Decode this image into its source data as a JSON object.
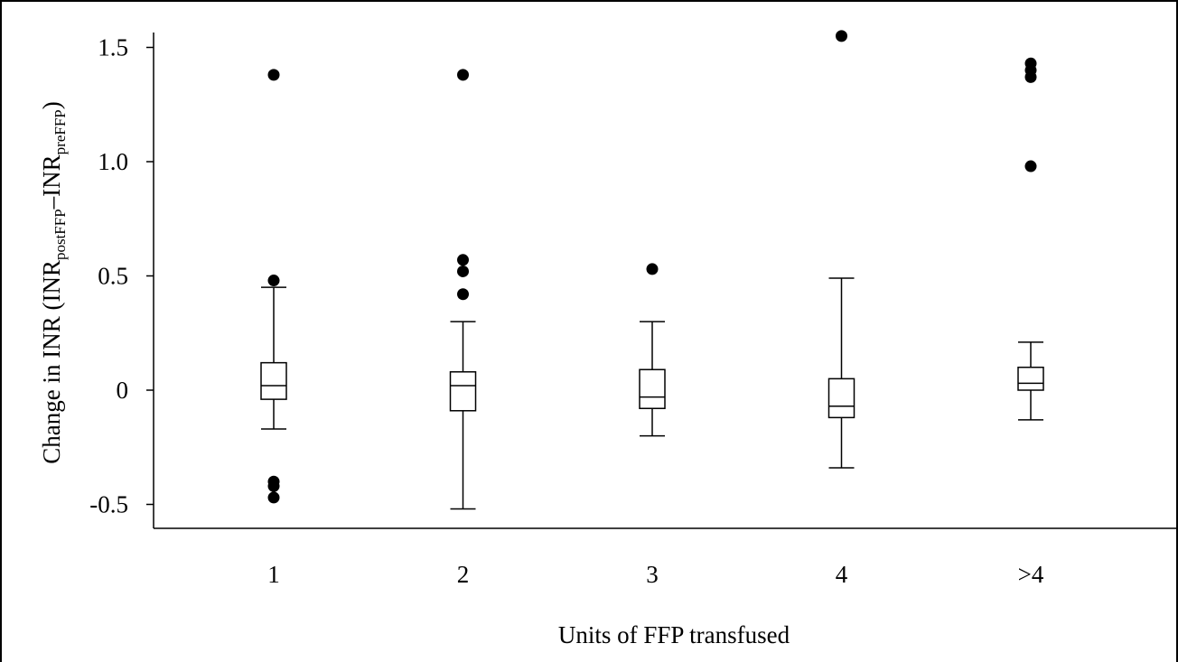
{
  "chart_data": {
    "type": "box",
    "title": "",
    "xlabel": "Units of FFP transfused",
    "ylabel": {
      "main": "Change in INR (INR",
      "sub1": "postFFP",
      "mid": "–INR",
      "sub2": "preFFP",
      "end": ")"
    },
    "categories": [
      "1",
      "2",
      "3",
      "4",
      ">4"
    ],
    "y_ticks": [
      {
        "value": 1.5,
        "label": "1.5"
      },
      {
        "value": 1.0,
        "label": "1.0"
      },
      {
        "value": 0.5,
        "label": "0.5"
      },
      {
        "value": 0.0,
        "label": "0"
      },
      {
        "value": -0.5,
        "label": "-0.5"
      }
    ],
    "ylim": [
      -0.62,
      1.57
    ],
    "grid": false,
    "boxes": [
      {
        "category": "1",
        "whisker_low": -0.17,
        "q1": -0.04,
        "median": 0.02,
        "q3": 0.12,
        "whisker_high": 0.45,
        "outliers": [
          1.38,
          0.48,
          -0.4,
          -0.42,
          -0.47
        ]
      },
      {
        "category": "2",
        "whisker_low": -0.52,
        "q1": -0.09,
        "median": 0.02,
        "q3": 0.08,
        "whisker_high": 0.3,
        "outliers": [
          1.38,
          0.57,
          0.52,
          0.42
        ]
      },
      {
        "category": "3",
        "whisker_low": -0.2,
        "q1": -0.08,
        "median": -0.03,
        "q3": 0.09,
        "whisker_high": 0.3,
        "outliers": [
          0.53
        ]
      },
      {
        "category": "4",
        "whisker_low": -0.34,
        "q1": -0.12,
        "median": -0.07,
        "q3": 0.05,
        "whisker_high": 0.49,
        "outliers": [
          1.55
        ]
      },
      {
        "category": ">4",
        "whisker_low": -0.13,
        "q1": 0.0,
        "median": 0.03,
        "q3": 0.1,
        "whisker_high": 0.21,
        "outliers": [
          1.43,
          1.4,
          1.37,
          0.98
        ]
      }
    ]
  }
}
